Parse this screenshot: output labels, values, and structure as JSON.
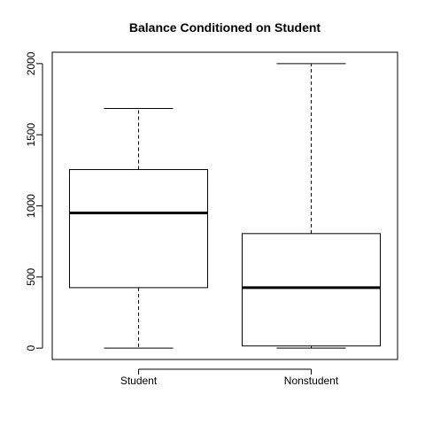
{
  "chart_data": {
    "type": "box",
    "title": "Balance Conditioned on Student",
    "xlabel": "",
    "ylabel": "",
    "categories": [
      "Student",
      "Nonstudent"
    ],
    "boxes": [
      {
        "name": "Student",
        "min": 0,
        "q1": 425,
        "median": 950,
        "q3": 1255,
        "max": 1685
      },
      {
        "name": "Nonstudent",
        "min": 0,
        "q1": 15,
        "median": 425,
        "q3": 805,
        "max": 2000
      }
    ],
    "yticks": [
      0,
      500,
      1000,
      1500,
      2000
    ],
    "ylim": [
      -80,
      2080
    ],
    "grid": false
  }
}
